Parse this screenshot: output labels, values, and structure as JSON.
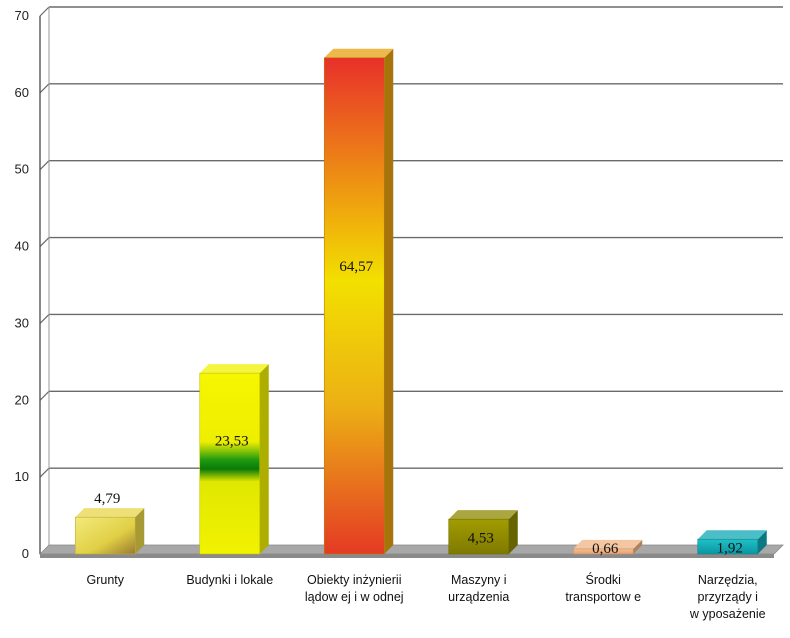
{
  "chart_data": {
    "type": "bar",
    "title": "",
    "xlabel": "",
    "ylabel": "",
    "ylim": [
      0,
      70
    ],
    "yticks": [
      0,
      10,
      20,
      30,
      40,
      50,
      60,
      70
    ],
    "grid": true,
    "legend": "none",
    "categories": [
      [
        "Grunty"
      ],
      [
        "Budynki i lokale"
      ],
      [
        "Obiekty inżynierii",
        "lądow ej i w odnej"
      ],
      [
        "Maszyny i",
        "urządzenia"
      ],
      [
        "Środki",
        "transportow e"
      ],
      [
        "Narzędzia,",
        "przyrządy i",
        "w yposażenie"
      ]
    ],
    "values": [
      4.79,
      23.53,
      64.57,
      4.53,
      0.66,
      1.92
    ],
    "value_labels": [
      "4,79",
      "23,53",
      "64,57",
      "4,53",
      "0,66",
      "1,92"
    ],
    "colors": [
      "#e8d64a",
      "#f2f200",
      "#e8a010",
      "#8e8a00",
      "#f0b483",
      "#10a8b4"
    ]
  }
}
